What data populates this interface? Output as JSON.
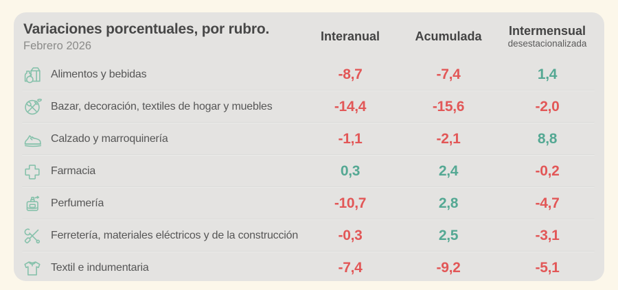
{
  "header": {
    "title": "Variaciones porcentuales, por rubro.",
    "subtitle": "Febrero 2026",
    "columns": [
      {
        "label": "Interanual",
        "sublabel": ""
      },
      {
        "label": "Acumulada",
        "sublabel": ""
      },
      {
        "label": "Intermensual",
        "sublabel": "desestacionalizada"
      }
    ]
  },
  "colors": {
    "page_bg": "#fcf7ea",
    "card_bg": "#e4e3e1",
    "negative": "#e25757",
    "positive": "#54a893",
    "icon_stroke": "#86c1ab"
  },
  "rows": [
    {
      "icon": "groceries",
      "label": "Alimentos y bebidas",
      "values": [
        "-8,7",
        "-7,4",
        "1,4"
      ]
    },
    {
      "icon": "tableware",
      "label": "Bazar, decoración, textiles de hogar y muebles",
      "values": [
        "-14,4",
        "-15,6",
        "-2,0"
      ]
    },
    {
      "icon": "shoe",
      "label": "Calzado y marroquinería",
      "values": [
        "-1,1",
        "-2,1",
        "8,8"
      ]
    },
    {
      "icon": "pharmacy-cross",
      "label": "Farmacia",
      "values": [
        "0,3",
        "2,4",
        "-0,2"
      ]
    },
    {
      "icon": "perfume",
      "label": "Perfumería",
      "values": [
        "-10,7",
        "2,8",
        "-4,7"
      ]
    },
    {
      "icon": "tools",
      "label": "Ferretería, materiales eléctricos y de la construcción",
      "values": [
        "-0,3",
        "2,5",
        "-3,1"
      ]
    },
    {
      "icon": "tshirt",
      "label": "Textil e indumentaria",
      "values": [
        "-7,4",
        "-9,2",
        "-5,1"
      ]
    }
  ],
  "chart_data": {
    "type": "table",
    "title": "Variaciones porcentuales, por rubro.",
    "subtitle": "Febrero 2026",
    "columns": [
      "Interanual",
      "Acumulada",
      "Intermensual desestacionalizada"
    ],
    "rows": [
      {
        "category": "Alimentos y bebidas",
        "values": [
          -8.7,
          -7.4,
          1.4
        ]
      },
      {
        "category": "Bazar, decoración, textiles de hogar y muebles",
        "values": [
          -14.4,
          -15.6,
          -2.0
        ]
      },
      {
        "category": "Calzado y marroquinería",
        "values": [
          -1.1,
          -2.1,
          8.8
        ]
      },
      {
        "category": "Farmacia",
        "values": [
          0.3,
          2.4,
          -0.2
        ]
      },
      {
        "category": "Perfumería",
        "values": [
          -10.7,
          2.8,
          -4.7
        ]
      },
      {
        "category": "Ferretería, materiales eléctricos y de la construcción",
        "values": [
          -0.3,
          2.5,
          -3.1
        ]
      },
      {
        "category": "Textil e indumentaria",
        "values": [
          -7.4,
          -9.2,
          -5.1
        ]
      }
    ],
    "value_color_rule": "negative=red, positive=green"
  }
}
